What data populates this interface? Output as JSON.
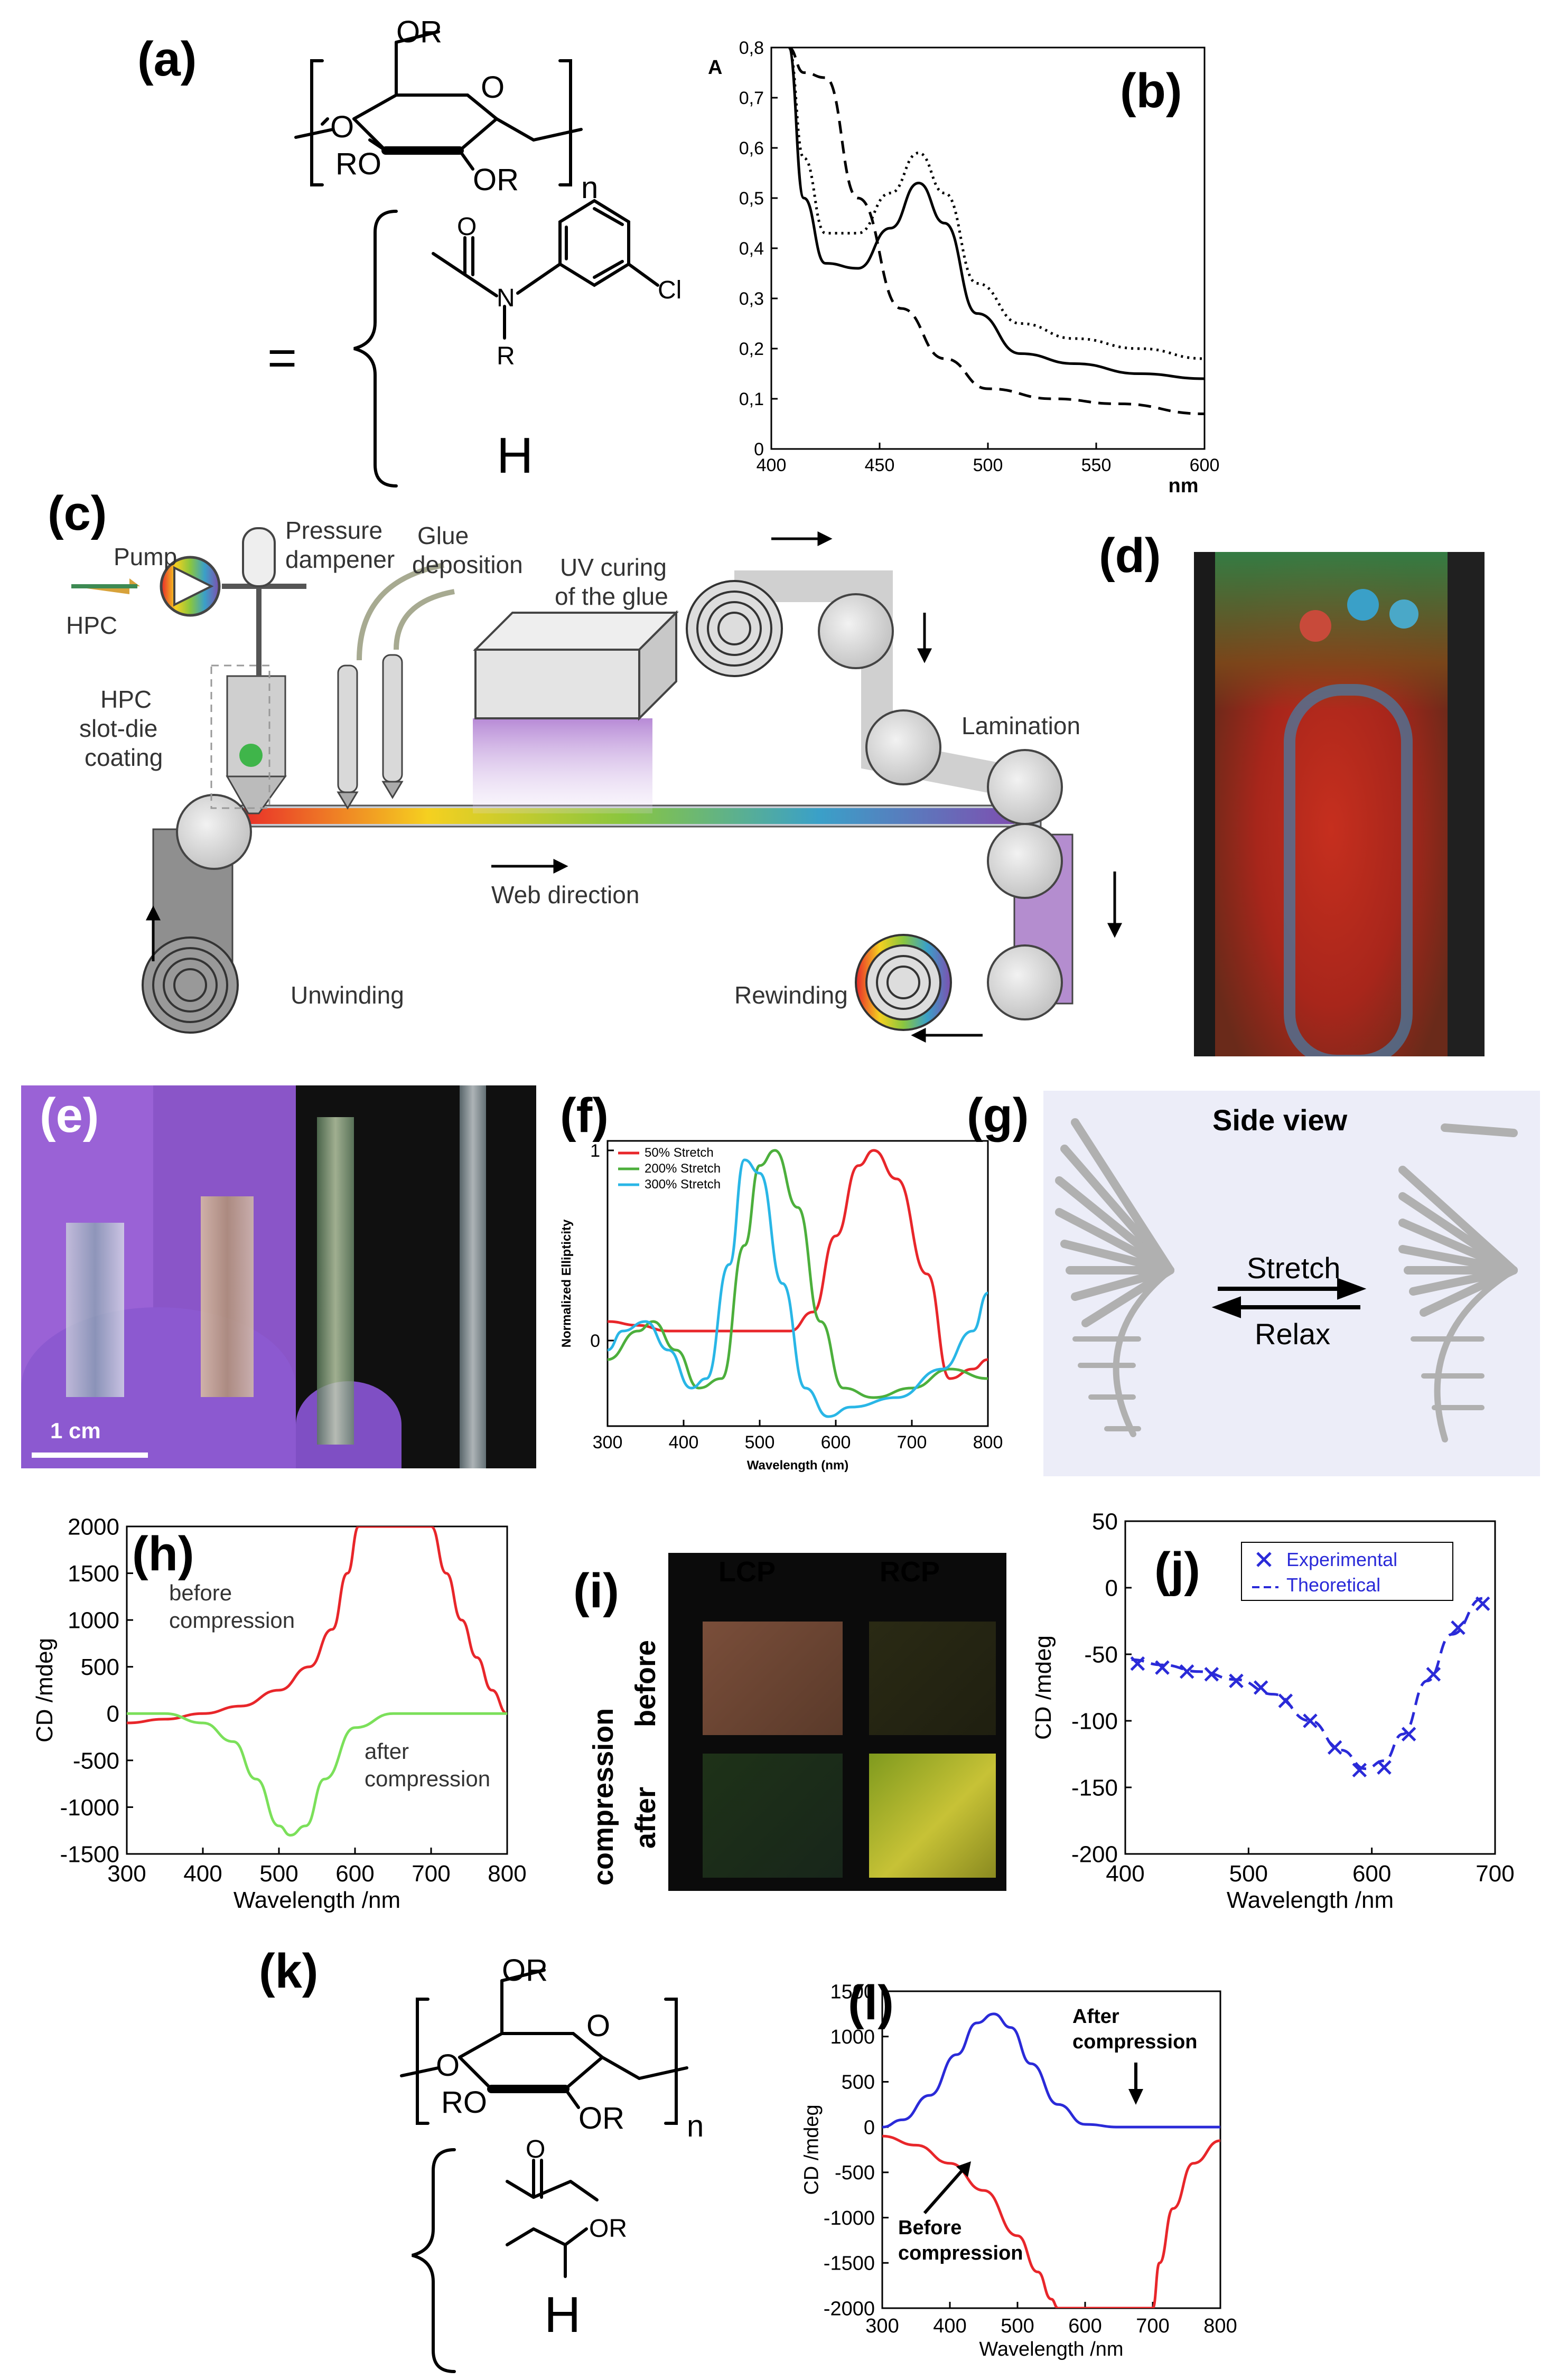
{
  "labels": {
    "a": "(a)",
    "b": "(b)",
    "c": "(c)",
    "d": "(d)",
    "e": "(e)",
    "f": "(f)",
    "g": "(g)",
    "h": "(h)",
    "i": "(i)",
    "j": "(j)",
    "k": "(k)",
    "l": "(l)"
  },
  "chem_a": {
    "or_top": "OR",
    "o_ring": "O",
    "o_left": "O",
    "ro": "RO",
    "or_bottom": "OR",
    "n": "n",
    "r_eq": "R =",
    "o_carbonyl": "O",
    "n_atom": "N",
    "r_sub": "R",
    "cl": "Cl",
    "h": "H"
  },
  "chem_k": {
    "or_top": "OR",
    "o_ring": "O",
    "o_left": "O",
    "ro": "RO",
    "or_bottom": "OR",
    "n": "n",
    "r_eq": "R =",
    "o_carbonyl": "O",
    "or_side": "OR",
    "h": "H"
  },
  "process": {
    "hpc": "HPC",
    "pump": "Pump",
    "dampener_1": "Pressure",
    "dampener_2": "dampener",
    "glue_1": "Glue",
    "glue_2": "deposition",
    "uv_1": "UV curing",
    "uv_2": "of the glue",
    "slot_1": "HPC",
    "slot_2": "slot-die",
    "slot_3": "coating",
    "lamination": "Lamination",
    "web": "Web direction",
    "unwinding": "Unwinding",
    "rewinding": "Rewinding"
  },
  "photo_e": {
    "scale": "1 cm"
  },
  "sideview": {
    "title": "Side view",
    "stretch": "Stretch",
    "relax": "Relax"
  },
  "grid_i": {
    "lcp": "LCP",
    "rcp": "RCP",
    "compression": "compression",
    "before": "before",
    "after": "after"
  },
  "colors": {
    "red": "#e8262a",
    "green": "#4caf3c",
    "cyan": "#29b6e6",
    "blue": "#2a2ad8",
    "lime": "#7be05a"
  },
  "chart_data": [
    {
      "id": "b",
      "type": "line",
      "xlabel": "nm",
      "ylabel": "A",
      "xlim": [
        400,
        600
      ],
      "ylim": [
        0,
        0.8
      ],
      "xticks": [
        "400",
        "450",
        "500",
        "550",
        "600"
      ],
      "yticks": [
        "0",
        "0,1",
        "0,2",
        "0,3",
        "0,4",
        "0,5",
        "0,6",
        "0,7",
        "0,8"
      ],
      "series": [
        {
          "style": "solid",
          "x": [
            408,
            415,
            425,
            440,
            455,
            468,
            480,
            495,
            515,
            540,
            570,
            600
          ],
          "y": [
            0.8,
            0.5,
            0.37,
            0.36,
            0.44,
            0.53,
            0.45,
            0.27,
            0.19,
            0.17,
            0.15,
            0.14
          ]
        },
        {
          "style": "dotted",
          "x": [
            408,
            415,
            425,
            440,
            455,
            468,
            480,
            495,
            515,
            540,
            570,
            600
          ],
          "y": [
            0.8,
            0.58,
            0.43,
            0.43,
            0.51,
            0.59,
            0.51,
            0.33,
            0.25,
            0.22,
            0.2,
            0.18
          ]
        },
        {
          "style": "dashed",
          "x": [
            408,
            415,
            425,
            440,
            460,
            480,
            500,
            530,
            560,
            600
          ],
          "y": [
            0.8,
            0.75,
            0.74,
            0.5,
            0.28,
            0.18,
            0.12,
            0.1,
            0.09,
            0.07
          ]
        }
      ]
    },
    {
      "id": "f",
      "type": "line",
      "xlabel": "Wavelength (nm)",
      "ylabel": "Normalized Ellipticity",
      "xlim": [
        300,
        800
      ],
      "ylim": [
        -0.45,
        1.05
      ],
      "xticks": [
        "300",
        "400",
        "500",
        "600",
        "700",
        "800"
      ],
      "yticks": [
        "0",
        "1"
      ],
      "legend": [
        "50% Stretch",
        "200% Stretch",
        "300% Stretch"
      ],
      "series": [
        {
          "name": "50% Stretch",
          "x": [
            300,
            340,
            380,
            420,
            480,
            540,
            570,
            600,
            630,
            650,
            680,
            720,
            750,
            780,
            800
          ],
          "y": [
            0.1,
            0.08,
            0.05,
            0.05,
            0.05,
            0.05,
            0.15,
            0.55,
            0.92,
            1.0,
            0.85,
            0.35,
            -0.2,
            -0.15,
            -0.1
          ]
        },
        {
          "name": "200% Stretch",
          "x": [
            300,
            340,
            360,
            390,
            420,
            450,
            480,
            500,
            520,
            550,
            580,
            610,
            650,
            700,
            750,
            800
          ],
          "y": [
            -0.1,
            0.05,
            0.1,
            -0.05,
            -0.25,
            -0.2,
            0.5,
            0.92,
            1.0,
            0.7,
            0.1,
            -0.25,
            -0.3,
            -0.25,
            -0.15,
            -0.2
          ]
        },
        {
          "name": "300% Stretch",
          "x": [
            300,
            320,
            350,
            380,
            410,
            430,
            460,
            480,
            500,
            530,
            560,
            590,
            620,
            680,
            740,
            780,
            800
          ],
          "y": [
            -0.05,
            0.05,
            0.1,
            -0.05,
            -0.25,
            -0.2,
            0.4,
            0.95,
            0.88,
            0.3,
            -0.25,
            -0.4,
            -0.35,
            -0.3,
            -0.15,
            0.05,
            0.25
          ]
        }
      ]
    },
    {
      "id": "h",
      "type": "line",
      "xlabel": "Wavelength /nm",
      "ylabel": "CD /mdeg",
      "xlim": [
        300,
        800
      ],
      "ylim": [
        -1500,
        2000
      ],
      "xticks": [
        "300",
        "400",
        "500",
        "600",
        "700",
        "800"
      ],
      "yticks": [
        "-1500",
        "-1000",
        "-500",
        "0",
        "500",
        "1000",
        "1500",
        "2000"
      ],
      "annotations": [
        "before",
        "compression",
        "after",
        "compression"
      ],
      "series": [
        {
          "name": "before compression",
          "x": [
            300,
            350,
            400,
            450,
            500,
            540,
            570,
            590,
            605,
            620,
            660,
            700,
            720,
            740,
            760,
            780,
            800
          ],
          "y": [
            -100,
            -60,
            0,
            80,
            250,
            500,
            900,
            1500,
            2000,
            2000,
            2000,
            2000,
            1500,
            1000,
            600,
            250,
            0
          ]
        },
        {
          "name": "after compression",
          "x": [
            300,
            350,
            400,
            440,
            470,
            500,
            515,
            535,
            560,
            600,
            650,
            700,
            750,
            800
          ],
          "y": [
            0,
            0,
            -100,
            -300,
            -700,
            -1200,
            -1300,
            -1200,
            -700,
            -150,
            0,
            0,
            0,
            0
          ]
        }
      ]
    },
    {
      "id": "j",
      "type": "scatter",
      "xlabel": "Wavelength /nm",
      "ylabel": "CD /mdeg",
      "xlim": [
        400,
        700
      ],
      "ylim": [
        -200,
        50
      ],
      "xticks": [
        "400",
        "500",
        "600",
        "700"
      ],
      "yticks": [
        "-200",
        "-150",
        "-100",
        "-50",
        "0",
        "50"
      ],
      "legend": [
        "Experimental",
        "Theoretical"
      ],
      "series": [
        {
          "name": "Experimental",
          "x": [
            410,
            430,
            450,
            470,
            490,
            510,
            530,
            550,
            570,
            590,
            610,
            630,
            650,
            670,
            690
          ],
          "y": [
            -57,
            -60,
            -63,
            -65,
            -70,
            -75,
            -85,
            -100,
            -120,
            -137,
            -135,
            -110,
            -65,
            -30,
            -12
          ]
        },
        {
          "name": "Theoretical",
          "x": [
            405,
            430,
            460,
            490,
            520,
            550,
            575,
            595,
            610,
            625,
            645,
            665,
            690
          ],
          "y": [
            -54,
            -58,
            -63,
            -69,
            -80,
            -100,
            -122,
            -136,
            -130,
            -110,
            -70,
            -35,
            -8
          ]
        }
      ]
    },
    {
      "id": "l",
      "type": "line",
      "xlabel": "Wavelength /nm",
      "ylabel": "CD /mdeg",
      "xlim": [
        300,
        800
      ],
      "ylim": [
        -2000,
        1500
      ],
      "xticks": [
        "300",
        "400",
        "500",
        "600",
        "700",
        "800"
      ],
      "yticks": [
        "-2000",
        "-1500",
        "-1000",
        "-500",
        "0",
        "500",
        "1000",
        "1500"
      ],
      "annotations": [
        "After",
        "compression",
        "Before",
        "compression"
      ],
      "series": [
        {
          "name": "After compression",
          "x": [
            300,
            330,
            370,
            410,
            440,
            465,
            490,
            520,
            560,
            600,
            650,
            700,
            800
          ],
          "y": [
            0,
            80,
            350,
            800,
            1150,
            1250,
            1100,
            700,
            250,
            30,
            0,
            0,
            0
          ]
        },
        {
          "name": "Before compression",
          "x": [
            300,
            350,
            400,
            450,
            500,
            530,
            550,
            560,
            700,
            710,
            730,
            760,
            800
          ],
          "y": [
            -100,
            -200,
            -400,
            -700,
            -1200,
            -1600,
            -1900,
            -2000,
            -2000,
            -1500,
            -900,
            -400,
            -150
          ]
        }
      ]
    }
  ]
}
